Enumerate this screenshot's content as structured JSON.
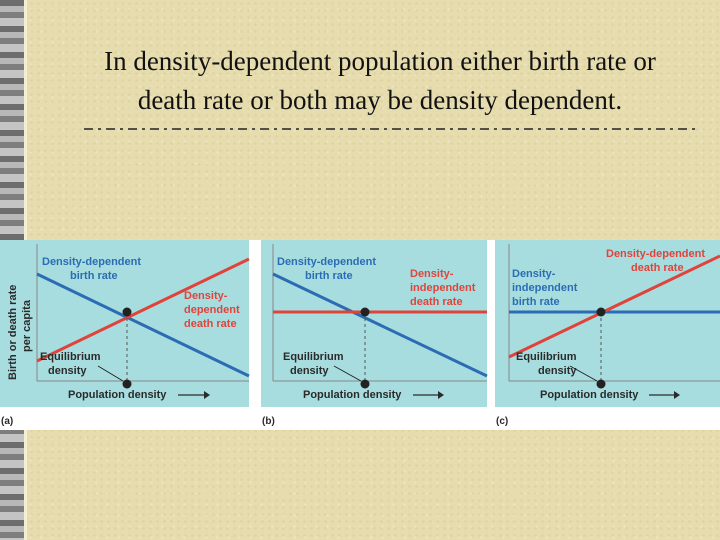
{
  "slide": {
    "title_line1": "In density-dependent population either birth rate or",
    "title_line2": "death rate or both may be density dependent."
  },
  "figure": {
    "y_axis_label_1": "Birth or death rate",
    "y_axis_label_2": "per capita",
    "x_axis_label": "Population density",
    "equilibrium_line1": "Equilibrium",
    "equilibrium_line2": "density",
    "panel_a": {
      "tag": "(a)",
      "birth_label_1": "Density-dependent",
      "birth_label_2": "birth rate",
      "death_label_1": "Density-",
      "death_label_2": "dependent",
      "death_label_3": "death rate"
    },
    "panel_b": {
      "tag": "(b)",
      "birth_label_1": "Density-dependent",
      "birth_label_2": "birth rate",
      "death_label_1": "Density-",
      "death_label_2": "independent",
      "death_label_3": "death rate"
    },
    "panel_c": {
      "tag": "(c)",
      "birth_label_1": "Density-",
      "birth_label_2": "independent",
      "birth_label_3": "birth rate",
      "death_label_1": "Density-dependent",
      "death_label_2": "death rate"
    }
  },
  "colors": {
    "panel_bg": "#a8dde0",
    "birth_line": "#2b6cb3",
    "death_line": "#e0433a",
    "label_text": "#2a2a2a"
  }
}
